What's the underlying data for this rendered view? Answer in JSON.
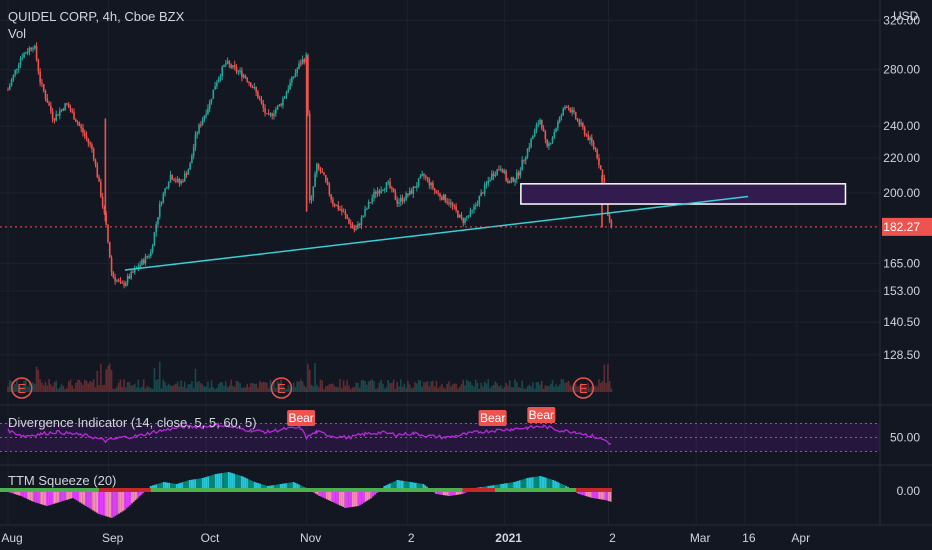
{
  "header": {
    "symbol_title": "QUIDEL CORP, 4h, Cboe BZX",
    "volume_label": "Vol"
  },
  "price_axis": {
    "currency": "USD",
    "ticks": [
      "320.00",
      "280.00",
      "240.00",
      "220.00",
      "200.00",
      "182.27",
      "165.00",
      "153.00",
      "140.50",
      "128.50"
    ],
    "tick_values": [
      320,
      280,
      240,
      220,
      200,
      182.27,
      165,
      153,
      140.5,
      128.5
    ],
    "last_price": "182.27",
    "last_price_value": 182.27
  },
  "time_axis": {
    "labels": [
      "Aug",
      "Sep",
      "Oct",
      "Nov",
      "2",
      "2021",
      "2",
      "Mar",
      "16",
      "Apr"
    ],
    "positions_days": [
      0,
      31,
      61,
      92,
      123,
      153,
      185,
      212,
      227,
      243
    ]
  },
  "earnings_markers": [
    "E",
    "E",
    "E"
  ],
  "divergence": {
    "title": "Divergence Indicator (14, close, 5, 5, 60, 5)",
    "level_label": "50.00",
    "bear_labels": [
      "Bear",
      "Bear",
      "Bear"
    ]
  },
  "ttm": {
    "title": "TTM Squeeze (20)",
    "level_label": "0.00"
  },
  "colors": {
    "background": "#131722",
    "up": "#26a69a",
    "down": "#ef5350",
    "trendline": "#36d1d6",
    "zone_fill": "#311b4f",
    "rsi_line": "#b52bd6",
    "rsi_band": "#6a1b9a",
    "bear_label": "#ef5350",
    "squeeze_green": "#4caf50",
    "last_price_bg": "#ef5350"
  },
  "chart_data": {
    "type": "candlestick",
    "x_unit": "days since Aug 1 2020",
    "price_path": [
      [
        0,
        265
      ],
      [
        4,
        290
      ],
      [
        8,
        300
      ],
      [
        10,
        270
      ],
      [
        14,
        245
      ],
      [
        18,
        255
      ],
      [
        22,
        240
      ],
      [
        26,
        225
      ],
      [
        30,
        185
      ],
      [
        32,
        160
      ],
      [
        35,
        155
      ],
      [
        38,
        160
      ],
      [
        41,
        165
      ],
      [
        44,
        170
      ],
      [
        47,
        195
      ],
      [
        50,
        210
      ],
      [
        53,
        205
      ],
      [
        56,
        215
      ],
      [
        58,
        235
      ],
      [
        60,
        245
      ],
      [
        62,
        255
      ],
      [
        64,
        270
      ],
      [
        67,
        285
      ],
      [
        70,
        280
      ],
      [
        73,
        275
      ],
      [
        76,
        265
      ],
      [
        80,
        245
      ],
      [
        84,
        255
      ],
      [
        87,
        270
      ],
      [
        90,
        285
      ],
      [
        92,
        290
      ],
      [
        93,
        190
      ],
      [
        95,
        215
      ],
      [
        97,
        210
      ],
      [
        100,
        195
      ],
      [
        103,
        190
      ],
      [
        107,
        180
      ],
      [
        110,
        190
      ],
      [
        113,
        200
      ],
      [
        117,
        205
      ],
      [
        120,
        195
      ],
      [
        124,
        200
      ],
      [
        128,
        210
      ],
      [
        132,
        200
      ],
      [
        136,
        195
      ],
      [
        140,
        185
      ],
      [
        143,
        190
      ],
      [
        146,
        200
      ],
      [
        149,
        210
      ],
      [
        152,
        215
      ],
      [
        154,
        205
      ],
      [
        157,
        210
      ],
      [
        160,
        225
      ],
      [
        164,
        245
      ],
      [
        166,
        225
      ],
      [
        169,
        240
      ],
      [
        172,
        255
      ],
      [
        175,
        245
      ],
      [
        178,
        235
      ],
      [
        181,
        225
      ],
      [
        183,
        210
      ],
      [
        185,
        185
      ],
      [
        186,
        182.27
      ]
    ],
    "trendline": {
      "x": [
        36,
        228
      ],
      "y": [
        162,
        198
      ]
    },
    "zone": {
      "x": [
        158,
        258
      ],
      "y": [
        194,
        205
      ]
    },
    "ylim": [
      120,
      325
    ],
    "log_scale": true,
    "divergence_series": [
      [
        0,
        60
      ],
      [
        5,
        52
      ],
      [
        10,
        55
      ],
      [
        15,
        58
      ],
      [
        20,
        55
      ],
      [
        25,
        52
      ],
      [
        30,
        45
      ],
      [
        35,
        50
      ],
      [
        40,
        52
      ],
      [
        45,
        58
      ],
      [
        50,
        62
      ],
      [
        55,
        66
      ],
      [
        60,
        65
      ],
      [
        65,
        68
      ],
      [
        70,
        64
      ],
      [
        75,
        60
      ],
      [
        80,
        58
      ],
      [
        85,
        62
      ],
      [
        90,
        64
      ],
      [
        92,
        50
      ],
      [
        95,
        58
      ],
      [
        100,
        52
      ],
      [
        105,
        50
      ],
      [
        110,
        55
      ],
      [
        115,
        57
      ],
      [
        120,
        54
      ],
      [
        125,
        56
      ],
      [
        130,
        52
      ],
      [
        135,
        50
      ],
      [
        140,
        54
      ],
      [
        145,
        58
      ],
      [
        150,
        60
      ],
      [
        155,
        62
      ],
      [
        160,
        64
      ],
      [
        165,
        66
      ],
      [
        170,
        60
      ],
      [
        175,
        58
      ],
      [
        180,
        52
      ],
      [
        184,
        46
      ],
      [
        186,
        40
      ]
    ],
    "bear_positions_days": [
      90,
      149,
      164
    ],
    "squeeze_series": [
      [
        0,
        -1
      ],
      [
        4,
        -3
      ],
      [
        8,
        -6
      ],
      [
        12,
        -8
      ],
      [
        16,
        -6
      ],
      [
        20,
        -4
      ],
      [
        24,
        -8
      ],
      [
        28,
        -12
      ],
      [
        32,
        -14
      ],
      [
        36,
        -10
      ],
      [
        40,
        -4
      ],
      [
        44,
        2
      ],
      [
        48,
        4
      ],
      [
        52,
        3
      ],
      [
        56,
        5
      ],
      [
        60,
        6
      ],
      [
        64,
        8
      ],
      [
        68,
        9
      ],
      [
        72,
        7
      ],
      [
        76,
        4
      ],
      [
        80,
        2
      ],
      [
        84,
        3
      ],
      [
        88,
        4
      ],
      [
        92,
        1
      ],
      [
        96,
        -3
      ],
      [
        100,
        -6
      ],
      [
        104,
        -9
      ],
      [
        108,
        -8
      ],
      [
        112,
        -4
      ],
      [
        116,
        2
      ],
      [
        120,
        5
      ],
      [
        124,
        4
      ],
      [
        128,
        3
      ],
      [
        132,
        -2
      ],
      [
        136,
        -3
      ],
      [
        140,
        -2
      ],
      [
        144,
        1
      ],
      [
        148,
        2
      ],
      [
        152,
        3
      ],
      [
        156,
        4
      ],
      [
        160,
        6
      ],
      [
        164,
        7
      ],
      [
        168,
        5
      ],
      [
        172,
        2
      ],
      [
        176,
        -2
      ],
      [
        180,
        -4
      ],
      [
        184,
        -5
      ],
      [
        186,
        -6
      ]
    ]
  }
}
